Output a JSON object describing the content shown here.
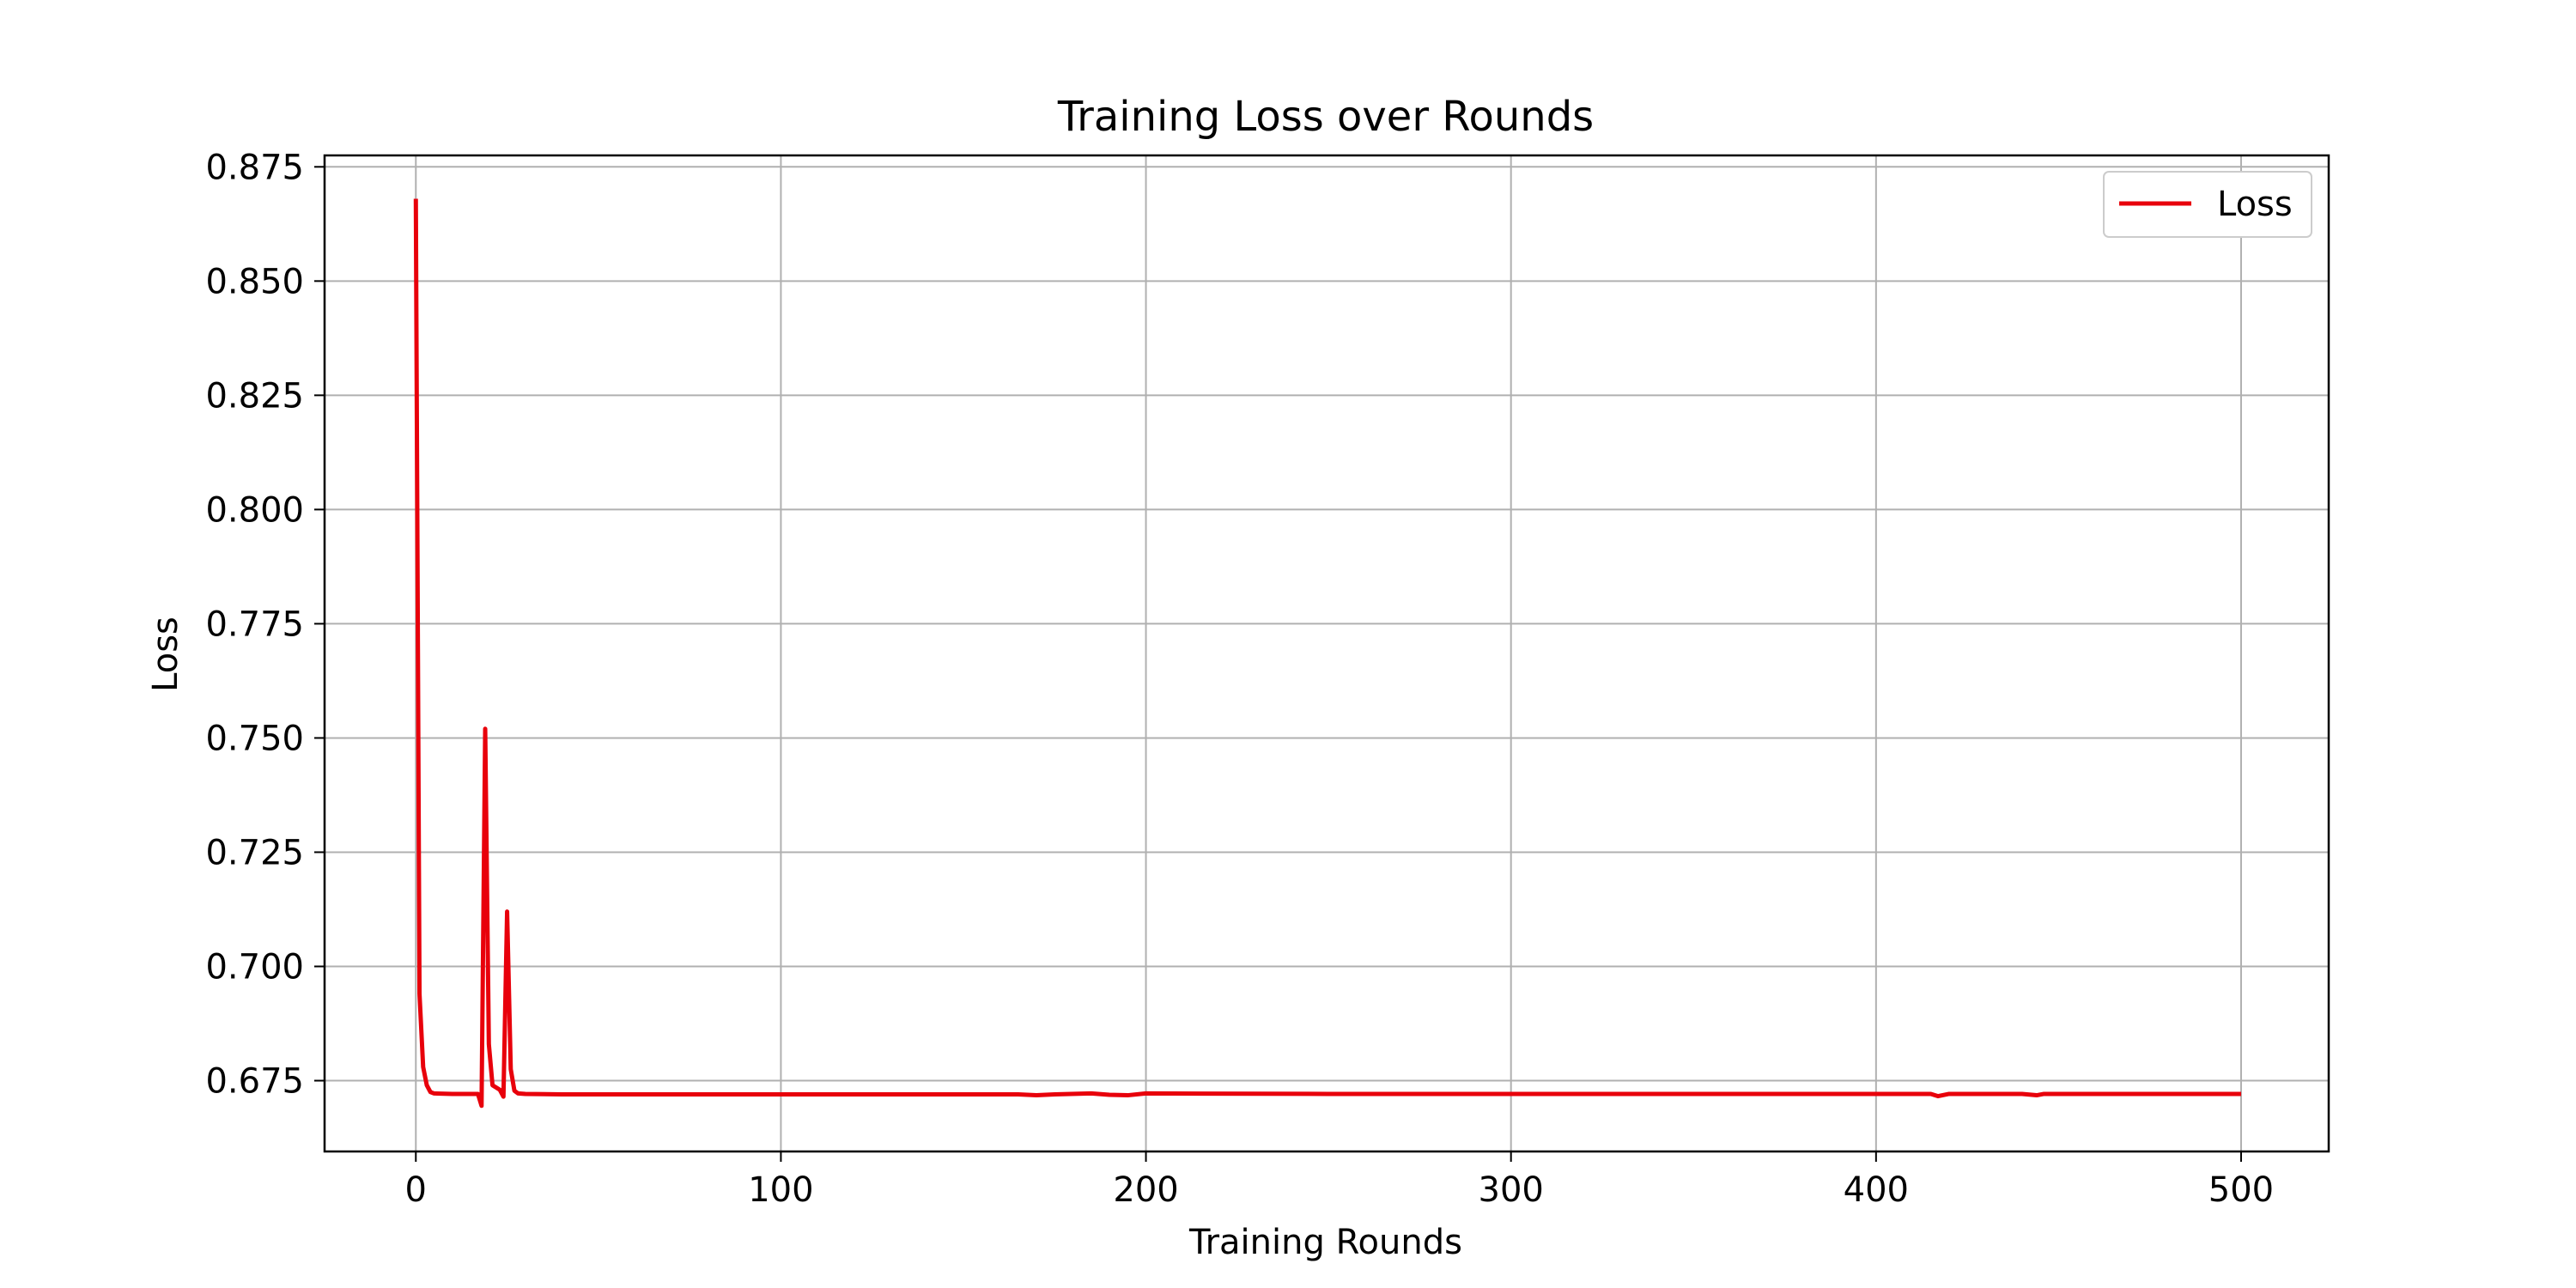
{
  "chart_data": {
    "type": "line",
    "title": "Training Loss over Rounds",
    "xlabel": "Training Rounds",
    "ylabel": "Loss",
    "xlim": [
      -25,
      524
    ],
    "ylim": [
      0.6595,
      0.8775
    ],
    "xticks": [
      0,
      100,
      200,
      300,
      400,
      500
    ],
    "yticks": [
      0.675,
      0.7,
      0.725,
      0.75,
      0.775,
      0.8,
      0.825,
      0.85,
      0.875
    ],
    "ytick_decimals": 3,
    "grid": true,
    "legend_position": "top-right",
    "series": [
      {
        "name": "Loss",
        "color": "#e8000b",
        "points": [
          [
            0,
            0.868
          ],
          [
            1,
            0.694
          ],
          [
            2,
            0.678
          ],
          [
            3,
            0.674
          ],
          [
            4,
            0.6725
          ],
          [
            5,
            0.6722
          ],
          [
            10,
            0.6721
          ],
          [
            15,
            0.6721
          ],
          [
            17,
            0.6721
          ],
          [
            18,
            0.6695
          ],
          [
            19,
            0.752
          ],
          [
            20,
            0.683
          ],
          [
            21,
            0.674
          ],
          [
            22,
            0.6735
          ],
          [
            23,
            0.673
          ],
          [
            24,
            0.6715
          ],
          [
            25,
            0.712
          ],
          [
            26,
            0.6775
          ],
          [
            27,
            0.6728
          ],
          [
            28,
            0.6722
          ],
          [
            30,
            0.6721
          ],
          [
            40,
            0.672
          ],
          [
            100,
            0.672
          ],
          [
            165,
            0.672
          ],
          [
            170,
            0.6718
          ],
          [
            175,
            0.672
          ],
          [
            185,
            0.6722
          ],
          [
            190,
            0.6719
          ],
          [
            195,
            0.6718
          ],
          [
            200,
            0.6722
          ],
          [
            250,
            0.6721
          ],
          [
            300,
            0.6721
          ],
          [
            350,
            0.6721
          ],
          [
            400,
            0.6721
          ],
          [
            415,
            0.6721
          ],
          [
            417,
            0.6716
          ],
          [
            420,
            0.6721
          ],
          [
            440,
            0.6721
          ],
          [
            444,
            0.6718
          ],
          [
            446,
            0.6721
          ],
          [
            470,
            0.6721
          ],
          [
            500,
            0.6721
          ]
        ]
      }
    ]
  }
}
